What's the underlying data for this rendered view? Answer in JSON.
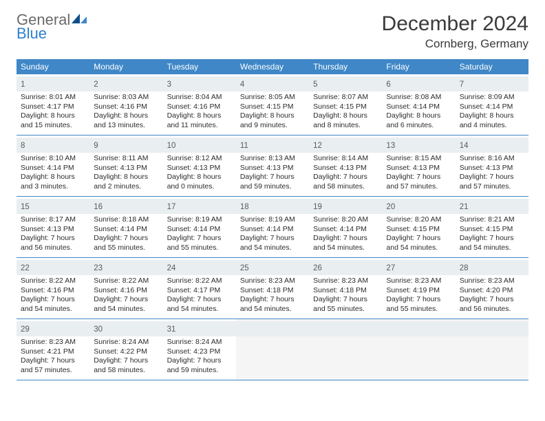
{
  "logo": {
    "word1": "General",
    "word2": "Blue"
  },
  "title": "December 2024",
  "location": "Cornberg, Germany",
  "colors": {
    "header_bar": "#3f87c7",
    "header_text": "#ffffff",
    "daynum_bg": "#e9eef1",
    "border": "#3f87c7",
    "text": "#2b2b2b",
    "logo_gray": "#6a6a6a",
    "logo_blue": "#2f7fcf",
    "sail_dark": "#0d4f8b",
    "sail_light": "#3f87c7"
  },
  "weekdays": [
    "Sunday",
    "Monday",
    "Tuesday",
    "Wednesday",
    "Thursday",
    "Friday",
    "Saturday"
  ],
  "days": [
    {
      "n": "1",
      "sr": "Sunrise: 8:01 AM",
      "ss": "Sunset: 4:17 PM",
      "d1": "Daylight: 8 hours",
      "d2": "and 15 minutes."
    },
    {
      "n": "2",
      "sr": "Sunrise: 8:03 AM",
      "ss": "Sunset: 4:16 PM",
      "d1": "Daylight: 8 hours",
      "d2": "and 13 minutes."
    },
    {
      "n": "3",
      "sr": "Sunrise: 8:04 AM",
      "ss": "Sunset: 4:16 PM",
      "d1": "Daylight: 8 hours",
      "d2": "and 11 minutes."
    },
    {
      "n": "4",
      "sr": "Sunrise: 8:05 AM",
      "ss": "Sunset: 4:15 PM",
      "d1": "Daylight: 8 hours",
      "d2": "and 9 minutes."
    },
    {
      "n": "5",
      "sr": "Sunrise: 8:07 AM",
      "ss": "Sunset: 4:15 PM",
      "d1": "Daylight: 8 hours",
      "d2": "and 8 minutes."
    },
    {
      "n": "6",
      "sr": "Sunrise: 8:08 AM",
      "ss": "Sunset: 4:14 PM",
      "d1": "Daylight: 8 hours",
      "d2": "and 6 minutes."
    },
    {
      "n": "7",
      "sr": "Sunrise: 8:09 AM",
      "ss": "Sunset: 4:14 PM",
      "d1": "Daylight: 8 hours",
      "d2": "and 4 minutes."
    },
    {
      "n": "8",
      "sr": "Sunrise: 8:10 AM",
      "ss": "Sunset: 4:14 PM",
      "d1": "Daylight: 8 hours",
      "d2": "and 3 minutes."
    },
    {
      "n": "9",
      "sr": "Sunrise: 8:11 AM",
      "ss": "Sunset: 4:13 PM",
      "d1": "Daylight: 8 hours",
      "d2": "and 2 minutes."
    },
    {
      "n": "10",
      "sr": "Sunrise: 8:12 AM",
      "ss": "Sunset: 4:13 PM",
      "d1": "Daylight: 8 hours",
      "d2": "and 0 minutes."
    },
    {
      "n": "11",
      "sr": "Sunrise: 8:13 AM",
      "ss": "Sunset: 4:13 PM",
      "d1": "Daylight: 7 hours",
      "d2": "and 59 minutes."
    },
    {
      "n": "12",
      "sr": "Sunrise: 8:14 AM",
      "ss": "Sunset: 4:13 PM",
      "d1": "Daylight: 7 hours",
      "d2": "and 58 minutes."
    },
    {
      "n": "13",
      "sr": "Sunrise: 8:15 AM",
      "ss": "Sunset: 4:13 PM",
      "d1": "Daylight: 7 hours",
      "d2": "and 57 minutes."
    },
    {
      "n": "14",
      "sr": "Sunrise: 8:16 AM",
      "ss": "Sunset: 4:13 PM",
      "d1": "Daylight: 7 hours",
      "d2": "and 57 minutes."
    },
    {
      "n": "15",
      "sr": "Sunrise: 8:17 AM",
      "ss": "Sunset: 4:13 PM",
      "d1": "Daylight: 7 hours",
      "d2": "and 56 minutes."
    },
    {
      "n": "16",
      "sr": "Sunrise: 8:18 AM",
      "ss": "Sunset: 4:14 PM",
      "d1": "Daylight: 7 hours",
      "d2": "and 55 minutes."
    },
    {
      "n": "17",
      "sr": "Sunrise: 8:19 AM",
      "ss": "Sunset: 4:14 PM",
      "d1": "Daylight: 7 hours",
      "d2": "and 55 minutes."
    },
    {
      "n": "18",
      "sr": "Sunrise: 8:19 AM",
      "ss": "Sunset: 4:14 PM",
      "d1": "Daylight: 7 hours",
      "d2": "and 54 minutes."
    },
    {
      "n": "19",
      "sr": "Sunrise: 8:20 AM",
      "ss": "Sunset: 4:14 PM",
      "d1": "Daylight: 7 hours",
      "d2": "and 54 minutes."
    },
    {
      "n": "20",
      "sr": "Sunrise: 8:20 AM",
      "ss": "Sunset: 4:15 PM",
      "d1": "Daylight: 7 hours",
      "d2": "and 54 minutes."
    },
    {
      "n": "21",
      "sr": "Sunrise: 8:21 AM",
      "ss": "Sunset: 4:15 PM",
      "d1": "Daylight: 7 hours",
      "d2": "and 54 minutes."
    },
    {
      "n": "22",
      "sr": "Sunrise: 8:22 AM",
      "ss": "Sunset: 4:16 PM",
      "d1": "Daylight: 7 hours",
      "d2": "and 54 minutes."
    },
    {
      "n": "23",
      "sr": "Sunrise: 8:22 AM",
      "ss": "Sunset: 4:16 PM",
      "d1": "Daylight: 7 hours",
      "d2": "and 54 minutes."
    },
    {
      "n": "24",
      "sr": "Sunrise: 8:22 AM",
      "ss": "Sunset: 4:17 PM",
      "d1": "Daylight: 7 hours",
      "d2": "and 54 minutes."
    },
    {
      "n": "25",
      "sr": "Sunrise: 8:23 AM",
      "ss": "Sunset: 4:18 PM",
      "d1": "Daylight: 7 hours",
      "d2": "and 54 minutes."
    },
    {
      "n": "26",
      "sr": "Sunrise: 8:23 AM",
      "ss": "Sunset: 4:18 PM",
      "d1": "Daylight: 7 hours",
      "d2": "and 55 minutes."
    },
    {
      "n": "27",
      "sr": "Sunrise: 8:23 AM",
      "ss": "Sunset: 4:19 PM",
      "d1": "Daylight: 7 hours",
      "d2": "and 55 minutes."
    },
    {
      "n": "28",
      "sr": "Sunrise: 8:23 AM",
      "ss": "Sunset: 4:20 PM",
      "d1": "Daylight: 7 hours",
      "d2": "and 56 minutes."
    },
    {
      "n": "29",
      "sr": "Sunrise: 8:23 AM",
      "ss": "Sunset: 4:21 PM",
      "d1": "Daylight: 7 hours",
      "d2": "and 57 minutes."
    },
    {
      "n": "30",
      "sr": "Sunrise: 8:24 AM",
      "ss": "Sunset: 4:22 PM",
      "d1": "Daylight: 7 hours",
      "d2": "and 58 minutes."
    },
    {
      "n": "31",
      "sr": "Sunrise: 8:24 AM",
      "ss": "Sunset: 4:23 PM",
      "d1": "Daylight: 7 hours",
      "d2": "and 59 minutes."
    }
  ],
  "layout": {
    "columns": 7,
    "trailing_empty": 4
  }
}
